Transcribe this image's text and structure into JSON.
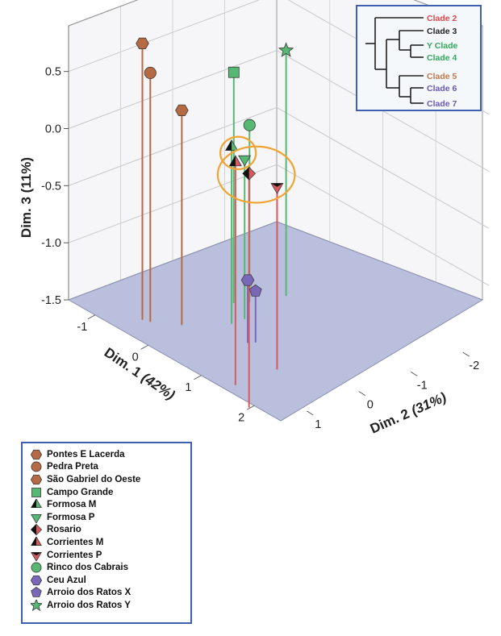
{
  "chart_data": {
    "type": "scatter3d",
    "x_axis": {
      "label": "Dim. 1",
      "pct": "(42%)",
      "ticks": [
        "-1",
        "0",
        "1",
        "2"
      ],
      "range": [
        -1.5,
        2.5
      ]
    },
    "y_axis": {
      "label": "Dim. 2",
      "pct": "(31%)",
      "ticks": [
        "-2",
        "-1",
        "0",
        "1"
      ],
      "range": [
        -2.5,
        1.5
      ]
    },
    "z_axis": {
      "label": "Dim. 3 (11%)",
      "ticks": [
        "-1.5",
        "-1.0",
        "-0.5",
        "0.0",
        "0.5"
      ],
      "range": [
        -1.5,
        0.9
      ]
    },
    "points": [
      {
        "name": "Pontes E Lacerda",
        "marker": "hexagon",
        "color": "#b56a43",
        "x": -0.55,
        "y": 1.05,
        "z": 0.92
      },
      {
        "name": "Pedra Preta",
        "marker": "circle",
        "color": "#b56a43",
        "x": -0.45,
        "y": 1.0,
        "z": 0.68
      },
      {
        "name": "São Gabriel do Oeste",
        "marker": "hexagon",
        "color": "#b56a43",
        "x": -0.15,
        "y": 0.7,
        "z": 0.38
      },
      {
        "name": "Campo Grande",
        "marker": "square",
        "color": "#56b873",
        "x": -0.2,
        "y": -0.35,
        "z": 0.52
      },
      {
        "name": "Formosa M",
        "marker": "triangle-up-half",
        "color": "#56b873",
        "x": 0.2,
        "y": 0.1,
        "z": 0.05
      },
      {
        "name": "Formosa P",
        "marker": "triangle-down",
        "color": "#56b873",
        "x": 0.2,
        "y": -0.15,
        "z": -0.1
      },
      {
        "name": "Rosario",
        "marker": "diamond-half",
        "color": "#d95a5e",
        "x": 2.0,
        "y": 1.6,
        "z": 0.55
      },
      {
        "name": "Corrientes M",
        "marker": "triangle-up-half",
        "color": "#d95a5e",
        "x": 1.45,
        "y": 1.3,
        "z": 0.45
      },
      {
        "name": "Corrientes P",
        "marker": "triangle-down-half",
        "color": "#d95a5e",
        "x": 1.45,
        "y": 0.5,
        "z": 0.1
      },
      {
        "name": "Rinco dos Cabrais",
        "marker": "circle",
        "color": "#56b873",
        "x": -0.1,
        "y": -0.55,
        "z": 0.05
      },
      {
        "name": "Ceu Azul",
        "marker": "hexagon",
        "color": "#7b67b8",
        "x": 0.7,
        "y": 0.3,
        "z": -0.95
      },
      {
        "name": "Arroio dos Ratos X",
        "marker": "pentagon",
        "color": "#7b67b8",
        "x": 0.75,
        "y": 0.2,
        "z": -1.05
      },
      {
        "name": "Arroio dos Ratos Y",
        "marker": "star",
        "color": "#56b873",
        "x": 0.05,
        "y": -1.1,
        "z": 0.65
      }
    ]
  },
  "legend": {
    "items": [
      {
        "label": "Pontes E Lacerda",
        "marker": "hexagon",
        "color": "#b56a43"
      },
      {
        "label": "Pedra Preta",
        "marker": "circle",
        "color": "#b56a43"
      },
      {
        "label": "São Gabriel do Oeste",
        "marker": "hexagon",
        "color": "#b56a43"
      },
      {
        "label": "Campo Grande",
        "marker": "square",
        "color": "#56b873"
      },
      {
        "label": "Formosa M",
        "marker": "triangle-up-half",
        "color": "#56b873"
      },
      {
        "label": "Formosa P",
        "marker": "triangle-down",
        "color": "#56b873"
      },
      {
        "label": "Rosario",
        "marker": "diamond-half",
        "color": "#d95a5e"
      },
      {
        "label": "Corrientes M",
        "marker": "triangle-up-half",
        "color": "#d95a5e"
      },
      {
        "label": "Corrientes P",
        "marker": "triangle-down-half",
        "color": "#d95a5e"
      },
      {
        "label": "Rinco dos Cabrais",
        "marker": "circle",
        "color": "#56b873"
      },
      {
        "label": "Ceu Azul",
        "marker": "hexagon",
        "color": "#7b67b8"
      },
      {
        "label": "Arroio dos Ratos X",
        "marker": "pentagon",
        "color": "#7b67b8"
      },
      {
        "label": "Arroio dos Ratos Y",
        "marker": "star",
        "color": "#56b873"
      }
    ]
  },
  "tree_inset": {
    "clades": [
      {
        "label": "Clade 2",
        "color": "#e0484c"
      },
      {
        "label": "Clade 3",
        "color": "#222222"
      },
      {
        "label": "Y Clade",
        "color": "#33a85a"
      },
      {
        "label": "Clade 4",
        "color": "#33a85a"
      },
      {
        "label": "Clade 5",
        "color": "#c07a4e"
      },
      {
        "label": "Clade 6",
        "color": "#6a58b3"
      },
      {
        "label": "Clade 7",
        "color": "#6a58b3"
      }
    ]
  },
  "highlight_color": "#f0a433",
  "floor_color": "#b9bfdc"
}
